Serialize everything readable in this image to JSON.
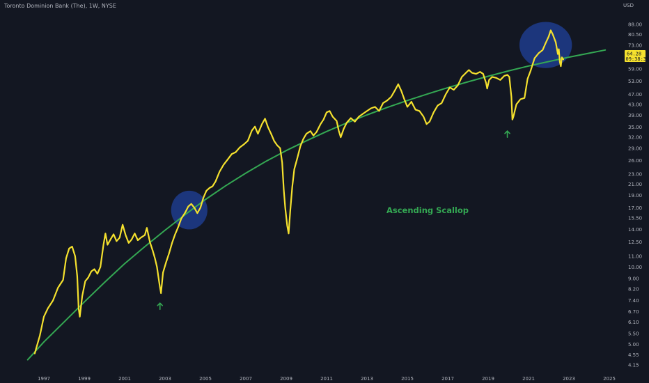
{
  "header": {
    "title": "Toronto Dominion Bank (The), 1W, NYSE",
    "currency": "USD"
  },
  "price_tag": {
    "price": "64.28",
    "countdown": "09:38:39"
  },
  "colors": {
    "background": "#131722",
    "price_line": "#f5e12e",
    "trend_curve": "#34a853",
    "highlight_fill": "#1f3c8c",
    "arrow": "#34a853",
    "axis_text": "#b2b5be"
  },
  "chart_data": {
    "type": "line",
    "y_scale": "log",
    "ylim": [
      4.0,
      92.0
    ],
    "xlim": [
      1996.0,
      2025.6
    ],
    "ylabel": "USD",
    "y_ticks": [
      88.0,
      80.5,
      73.0,
      59.0,
      53.0,
      47.0,
      43.0,
      39.0,
      35.0,
      32.0,
      29.0,
      26.0,
      23.0,
      21.0,
      19.0,
      17.0,
      15.5,
      14.0,
      12.5,
      11.0,
      10.0,
      9.0,
      8.2,
      7.4,
      6.7,
      6.1,
      5.5,
      5.0,
      4.55,
      4.15
    ],
    "y_tick_labels": [
      "88.00",
      "80.50",
      "73.00",
      "59.00",
      "53.00",
      "47.00",
      "43.00",
      "39.00",
      "35.00",
      "32.00",
      "29.00",
      "26.00",
      "23.00",
      "21.00",
      "19.00",
      "17.00",
      "15.50",
      "14.00",
      "12.50",
      "11.00",
      "10.00",
      "9.00",
      "8.20",
      "7.40",
      "6.70",
      "6.10",
      "5.50",
      "5.00",
      "4.55",
      "4.15"
    ],
    "x_ticks": [
      1997,
      1999,
      2001,
      2003,
      2005,
      2007,
      2009,
      2011,
      2013,
      2015,
      2017,
      2019,
      2021,
      2023,
      2025
    ],
    "x_tick_labels": [
      "1997",
      "1999",
      "2001",
      "2003",
      "2005",
      "2007",
      "2009",
      "2011",
      "2013",
      "2015",
      "2017",
      "2019",
      "2021",
      "2023",
      "2025"
    ],
    "series": [
      {
        "values": [
          [
            1996.55,
            4.6
          ],
          [
            1996.8,
            5.4
          ],
          [
            1997.0,
            6.4
          ],
          [
            1997.2,
            6.9
          ],
          [
            1997.45,
            7.4
          ],
          [
            1997.7,
            8.3
          ],
          [
            1997.95,
            8.9
          ],
          [
            1998.1,
            10.8
          ],
          [
            1998.25,
            11.8
          ],
          [
            1998.4,
            12.0
          ],
          [
            1998.55,
            11.0
          ],
          [
            1998.65,
            9.2
          ],
          [
            1998.72,
            6.9
          ],
          [
            1998.78,
            6.4
          ],
          [
            1998.9,
            7.7
          ],
          [
            1999.05,
            8.8
          ],
          [
            1999.2,
            9.1
          ],
          [
            1999.35,
            9.6
          ],
          [
            1999.5,
            9.8
          ],
          [
            1999.65,
            9.4
          ],
          [
            1999.8,
            10.0
          ],
          [
            1999.95,
            12.2
          ],
          [
            2000.05,
            13.5
          ],
          [
            2000.15,
            12.2
          ],
          [
            2000.3,
            12.8
          ],
          [
            2000.45,
            13.4
          ],
          [
            2000.6,
            12.6
          ],
          [
            2000.75,
            13.0
          ],
          [
            2000.9,
            14.6
          ],
          [
            2001.05,
            13.3
          ],
          [
            2001.2,
            12.4
          ],
          [
            2001.35,
            12.8
          ],
          [
            2001.5,
            13.5
          ],
          [
            2001.65,
            12.7
          ],
          [
            2001.8,
            13.0
          ],
          [
            2002.0,
            13.3
          ],
          [
            2002.1,
            14.2
          ],
          [
            2002.25,
            12.5
          ],
          [
            2002.4,
            11.5
          ],
          [
            2002.5,
            10.8
          ],
          [
            2002.6,
            10.0
          ],
          [
            2002.72,
            8.6
          ],
          [
            2002.8,
            7.9
          ],
          [
            2002.9,
            9.5
          ],
          [
            2003.05,
            10.4
          ],
          [
            2003.2,
            11.3
          ],
          [
            2003.35,
            12.4
          ],
          [
            2003.5,
            13.4
          ],
          [
            2003.65,
            14.3
          ],
          [
            2003.8,
            15.4
          ],
          [
            2004.0,
            16.3
          ],
          [
            2004.15,
            17.2
          ],
          [
            2004.3,
            17.6
          ],
          [
            2004.45,
            17.0
          ],
          [
            2004.6,
            16.2
          ],
          [
            2004.75,
            17.0
          ],
          [
            2004.9,
            18.6
          ],
          [
            2005.05,
            19.8
          ],
          [
            2005.2,
            20.3
          ],
          [
            2005.35,
            20.6
          ],
          [
            2005.5,
            21.5
          ],
          [
            2005.7,
            23.5
          ],
          [
            2005.9,
            25.0
          ],
          [
            2006.1,
            26.2
          ],
          [
            2006.3,
            27.5
          ],
          [
            2006.5,
            28.0
          ],
          [
            2006.7,
            29.2
          ],
          [
            2006.9,
            30.0
          ],
          [
            2007.1,
            31.0
          ],
          [
            2007.3,
            34.0
          ],
          [
            2007.45,
            35.2
          ],
          [
            2007.6,
            33.0
          ],
          [
            2007.8,
            36.0
          ],
          [
            2007.95,
            37.8
          ],
          [
            2008.1,
            35.0
          ],
          [
            2008.25,
            33.0
          ],
          [
            2008.4,
            31.0
          ],
          [
            2008.55,
            29.8
          ],
          [
            2008.7,
            29.0
          ],
          [
            2008.8,
            25.5
          ],
          [
            2008.88,
            20.0
          ],
          [
            2008.95,
            17.0
          ],
          [
            2009.05,
            14.5
          ],
          [
            2009.12,
            13.5
          ],
          [
            2009.2,
            16.5
          ],
          [
            2009.3,
            20.5
          ],
          [
            2009.4,
            24.0
          ],
          [
            2009.55,
            26.5
          ],
          [
            2009.7,
            29.5
          ],
          [
            2009.85,
            31.5
          ],
          [
            2010.0,
            33.0
          ],
          [
            2010.2,
            33.8
          ],
          [
            2010.35,
            32.5
          ],
          [
            2010.5,
            33.5
          ],
          [
            2010.7,
            36.0
          ],
          [
            2010.85,
            37.5
          ],
          [
            2011.0,
            40.0
          ],
          [
            2011.15,
            40.5
          ],
          [
            2011.3,
            38.5
          ],
          [
            2011.5,
            37.0
          ],
          [
            2011.6,
            34.0
          ],
          [
            2011.7,
            32.0
          ],
          [
            2011.85,
            34.5
          ],
          [
            2012.0,
            36.5
          ],
          [
            2012.2,
            38.0
          ],
          [
            2012.4,
            36.8
          ],
          [
            2012.6,
            38.5
          ],
          [
            2012.8,
            39.5
          ],
          [
            2013.0,
            40.5
          ],
          [
            2013.2,
            41.5
          ],
          [
            2013.4,
            42.0
          ],
          [
            2013.6,
            40.5
          ],
          [
            2013.8,
            43.5
          ],
          [
            2014.0,
            44.5
          ],
          [
            2014.2,
            46.0
          ],
          [
            2014.4,
            49.0
          ],
          [
            2014.55,
            51.5
          ],
          [
            2014.7,
            48.5
          ],
          [
            2014.85,
            45.0
          ],
          [
            2015.0,
            42.0
          ],
          [
            2015.2,
            44.0
          ],
          [
            2015.4,
            41.0
          ],
          [
            2015.6,
            40.5
          ],
          [
            2015.8,
            38.5
          ],
          [
            2015.95,
            36.0
          ],
          [
            2016.1,
            36.8
          ],
          [
            2016.3,
            40.0
          ],
          [
            2016.5,
            42.5
          ],
          [
            2016.7,
            43.5
          ],
          [
            2016.9,
            47.0
          ],
          [
            2017.1,
            50.0
          ],
          [
            2017.3,
            49.0
          ],
          [
            2017.5,
            51.0
          ],
          [
            2017.7,
            55.0
          ],
          [
            2017.9,
            57.0
          ],
          [
            2018.05,
            58.5
          ],
          [
            2018.2,
            57.0
          ],
          [
            2018.4,
            56.5
          ],
          [
            2018.6,
            57.5
          ],
          [
            2018.75,
            56.5
          ],
          [
            2018.9,
            52.0
          ],
          [
            2018.95,
            49.5
          ],
          [
            2019.05,
            53.5
          ],
          [
            2019.2,
            55.0
          ],
          [
            2019.4,
            54.5
          ],
          [
            2019.6,
            53.5
          ],
          [
            2019.8,
            55.5
          ],
          [
            2019.95,
            56.0
          ],
          [
            2020.05,
            55.0
          ],
          [
            2020.15,
            46.0
          ],
          [
            2020.2,
            37.5
          ],
          [
            2020.25,
            38.5
          ],
          [
            2020.4,
            43.0
          ],
          [
            2020.6,
            45.0
          ],
          [
            2020.8,
            45.5
          ],
          [
            2020.95,
            54.0
          ],
          [
            2021.1,
            58.0
          ],
          [
            2021.3,
            65.0
          ],
          [
            2021.5,
            68.0
          ],
          [
            2021.7,
            70.0
          ],
          [
            2021.85,
            74.5
          ],
          [
            2022.0,
            79.0
          ],
          [
            2022.1,
            83.5
          ],
          [
            2022.2,
            80.5
          ],
          [
            2022.35,
            75.0
          ],
          [
            2022.45,
            67.5
          ],
          [
            2022.5,
            70.5
          ],
          [
            2022.55,
            63.0
          ],
          [
            2022.6,
            60.5
          ],
          [
            2022.65,
            65.5
          ],
          [
            2022.72,
            64.3
          ]
        ]
      },
      {
        "values": [
          [
            1996.2,
            4.35
          ],
          [
            1997.0,
            5.1
          ],
          [
            1998.0,
            6.1
          ],
          [
            1999.0,
            7.3
          ],
          [
            2000.0,
            8.7
          ],
          [
            2001.0,
            10.3
          ],
          [
            2002.0,
            12.0
          ],
          [
            2003.0,
            13.9
          ],
          [
            2004.0,
            16.0
          ],
          [
            2005.0,
            18.3
          ],
          [
            2006.0,
            20.7
          ],
          [
            2007.0,
            23.2
          ],
          [
            2008.0,
            25.8
          ],
          [
            2009.0,
            28.4
          ],
          [
            2010.0,
            31.0
          ],
          [
            2011.0,
            33.7
          ],
          [
            2012.0,
            36.4
          ],
          [
            2013.0,
            39.1
          ],
          [
            2014.0,
            41.8
          ],
          [
            2015.0,
            44.5
          ],
          [
            2016.0,
            47.2
          ],
          [
            2017.0,
            49.9
          ],
          [
            2018.0,
            52.6
          ],
          [
            2019.0,
            55.3
          ],
          [
            2020.0,
            58.0
          ],
          [
            2021.0,
            60.6
          ],
          [
            2022.0,
            63.1
          ],
          [
            2023.0,
            65.6
          ],
          [
            2024.0,
            68.0
          ],
          [
            2024.8,
            70.0
          ]
        ]
      }
    ],
    "annotations": [
      {
        "type": "text",
        "text": "Ascending Scallop",
        "x": 2016.0,
        "y": 16.2
      },
      {
        "type": "ellipse",
        "cx": 2004.2,
        "cy": 16.5,
        "rx_years": 0.9,
        "ry_ratio": [
          14.0,
          19.8
        ]
      },
      {
        "type": "ellipse",
        "cx": 2021.85,
        "cy": 73.0,
        "rx_years": 1.3,
        "ry_ratio": [
          59.5,
          90.0
        ]
      },
      {
        "type": "arrow",
        "direction": "up",
        "x": 2002.75,
        "y": 7.05
      },
      {
        "type": "arrow",
        "direction": "up",
        "x": 2019.95,
        "y": 33.0
      }
    ]
  }
}
